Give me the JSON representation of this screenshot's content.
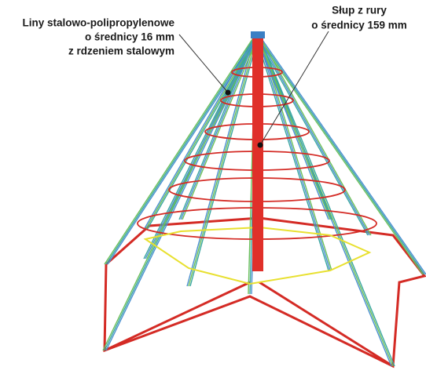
{
  "labels": [
    {
      "lines": [
        "Liny stalowo-polipropylenowe",
        "o średnicy 16 mm",
        "z rdzeniem stalowym"
      ]
    },
    {
      "lines": [
        "Słup z rury",
        "o średnicy 159 mm"
      ]
    }
  ]
}
